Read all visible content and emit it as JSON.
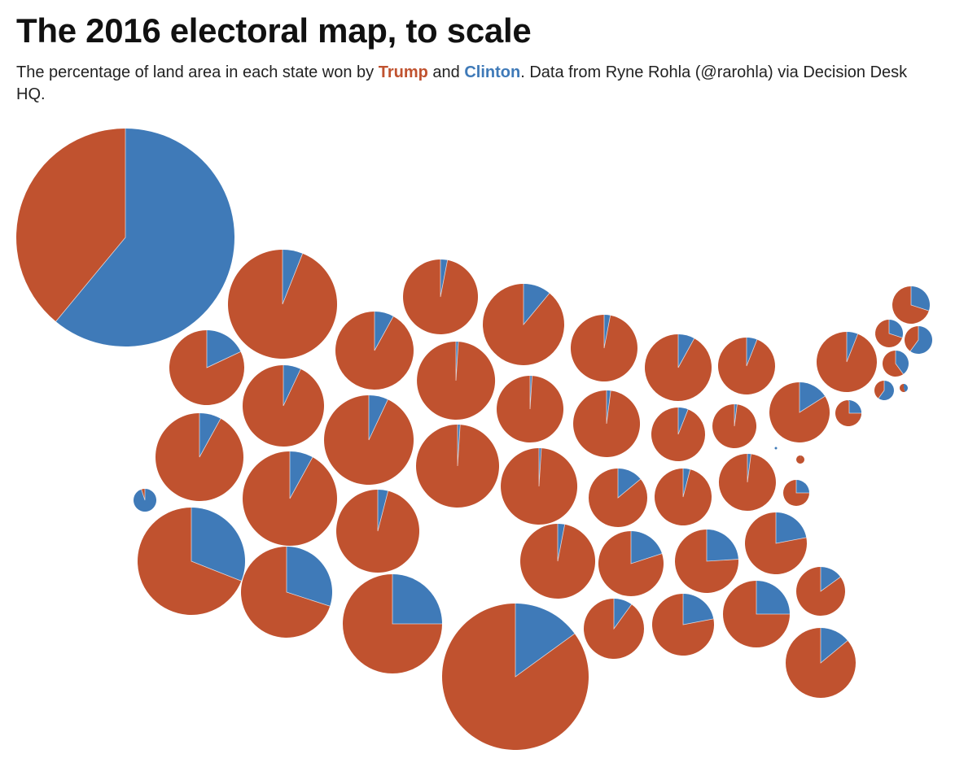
{
  "chart_data": {
    "type": "pie",
    "title": "The 2016 electoral map, to scale",
    "subtitle": {
      "prefix": "The percentage of land area in each state won by ",
      "trump": "Trump",
      "middle": " and ",
      "clinton": "Clinton",
      "suffix": ". Data from Ryne Rohla (@rarohla) via Decision Desk HQ."
    },
    "series_names": [
      "Clinton",
      "Trump"
    ],
    "colors": {
      "trump": "#c0522f",
      "clinton": "#3f7ab8"
    },
    "unit": "percent of state land area won by Clinton (remainder won by Trump)",
    "states": [
      {
        "id": "AK",
        "clinton_pct": 61
      },
      {
        "id": "HI",
        "clinton_pct": 95
      },
      {
        "id": "WA",
        "clinton_pct": 18
      },
      {
        "id": "OR",
        "clinton_pct": 8
      },
      {
        "id": "CA",
        "clinton_pct": 31
      },
      {
        "id": "ID",
        "clinton_pct": 6
      },
      {
        "id": "NV",
        "clinton_pct": 7
      },
      {
        "id": "MT",
        "clinton_pct": 8
      },
      {
        "id": "UT",
        "clinton_pct": 8
      },
      {
        "id": "AZ",
        "clinton_pct": 30
      },
      {
        "id": "WY",
        "clinton_pct": 7
      },
      {
        "id": "CO",
        "clinton_pct": 4
      },
      {
        "id": "NM",
        "clinton_pct": 25
      },
      {
        "id": "ND",
        "clinton_pct": 3
      },
      {
        "id": "SD",
        "clinton_pct": 1
      },
      {
        "id": "NE",
        "clinton_pct": 1
      },
      {
        "id": "KS",
        "clinton_pct": 1
      },
      {
        "id": "OK",
        "clinton_pct": 1
      },
      {
        "id": "TX",
        "clinton_pct": 15
      },
      {
        "id": "MN",
        "clinton_pct": 11
      },
      {
        "id": "IA",
        "clinton_pct": 3
      },
      {
        "id": "MO",
        "clinton_pct": 2
      },
      {
        "id": "AR",
        "clinton_pct": 14
      },
      {
        "id": "LA",
        "clinton_pct": 20
      },
      {
        "id": "WI",
        "clinton_pct": 8
      },
      {
        "id": "IL",
        "clinton_pct": 6
      },
      {
        "id": "KY",
        "clinton_pct": 4
      },
      {
        "id": "TN",
        "clinton_pct": 3
      },
      {
        "id": "MS",
        "clinton_pct": 10
      },
      {
        "id": "MI",
        "clinton_pct": 6
      },
      {
        "id": "IN",
        "clinton_pct": 2
      },
      {
        "id": "OH",
        "clinton_pct": 2
      },
      {
        "id": "AL",
        "clinton_pct": 24
      },
      {
        "id": "WV",
        "clinton_pct": 1
      },
      {
        "id": "VA",
        "clinton_pct": 16
      },
      {
        "id": "NC",
        "clinton_pct": 22
      },
      {
        "id": "GA",
        "clinton_pct": 22
      },
      {
        "id": "PA",
        "clinton_pct": 6
      },
      {
        "id": "SC",
        "clinton_pct": 25
      },
      {
        "id": "FL",
        "clinton_pct": 14
      },
      {
        "id": "NY",
        "clinton_pct": 30
      },
      {
        "id": "ME",
        "clinton_pct": 30
      },
      {
        "id": "VT",
        "clinton_pct": 60
      },
      {
        "id": "NH",
        "clinton_pct": 40
      },
      {
        "id": "MA",
        "clinton_pct": 60
      },
      {
        "id": "CT",
        "clinton_pct": 45
      },
      {
        "id": "RI",
        "clinton_pct": 35
      },
      {
        "id": "NJ",
        "clinton_pct": 25
      },
      {
        "id": "DE",
        "clinton_pct": 15
      },
      {
        "id": "MD",
        "clinton_pct": 25
      },
      {
        "id": "DC",
        "clinton_pct": 100
      }
    ]
  }
}
